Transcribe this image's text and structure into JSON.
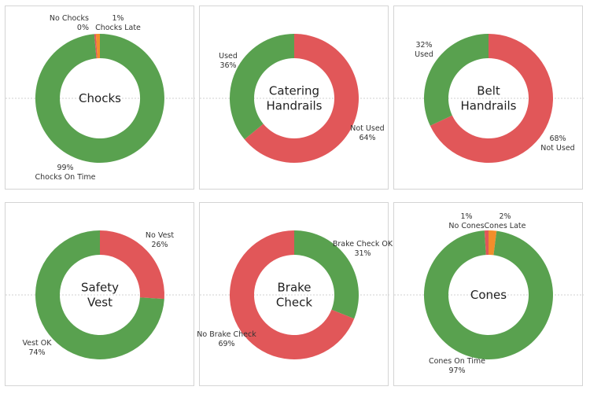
{
  "colors": {
    "green": "#59a14f",
    "red": "#e15759",
    "orange": "#f28e2b"
  },
  "chart_data": [
    {
      "type": "pie",
      "title": "Chocks",
      "slices": [
        {
          "label": "Chocks On Time",
          "value": 99,
          "percent_text": "99%",
          "color": "#59a14f"
        },
        {
          "label": "No Chocks",
          "value": 0.4,
          "percent_text": "0%",
          "color": "#e15759"
        },
        {
          "label": "Chocks Late",
          "value": 1,
          "percent_text": "1%",
          "color": "#f28e2b"
        }
      ]
    },
    {
      "type": "pie",
      "title": "Catering Handrails",
      "slices": [
        {
          "label": "Not Used",
          "value": 64,
          "percent_text": "64%",
          "color": "#e15759"
        },
        {
          "label": "Used",
          "value": 36,
          "percent_text": "36%",
          "color": "#59a14f"
        }
      ]
    },
    {
      "type": "pie",
      "title": "Belt Handrails",
      "slices": [
        {
          "label": "Not Used",
          "value": 68,
          "percent_text": "68%",
          "color": "#e15759"
        },
        {
          "label": "Used",
          "value": 32,
          "percent_text": "32%",
          "color": "#59a14f"
        }
      ]
    },
    {
      "type": "pie",
      "title": "Safety Vest",
      "slices": [
        {
          "label": "No Vest",
          "value": 26,
          "percent_text": "26%",
          "color": "#e15759"
        },
        {
          "label": "Vest OK",
          "value": 74,
          "percent_text": "74%",
          "color": "#59a14f"
        }
      ]
    },
    {
      "type": "pie",
      "title": "Brake Check",
      "slices": [
        {
          "label": "Brake Check OK",
          "value": 31,
          "percent_text": "31%",
          "color": "#59a14f"
        },
        {
          "label": "No Brake Check",
          "value": 69,
          "percent_text": "69%",
          "color": "#e15759"
        }
      ]
    },
    {
      "type": "pie",
      "title": "Cones",
      "slices": [
        {
          "label": "Cones Late",
          "value": 2,
          "percent_text": "2%",
          "color": "#f28e2b"
        },
        {
          "label": "Cones On Time",
          "value": 97,
          "percent_text": "97%",
          "color": "#59a14f"
        },
        {
          "label": "No Cones",
          "value": 1,
          "percent_text": "1%",
          "color": "#e15759"
        }
      ]
    }
  ]
}
